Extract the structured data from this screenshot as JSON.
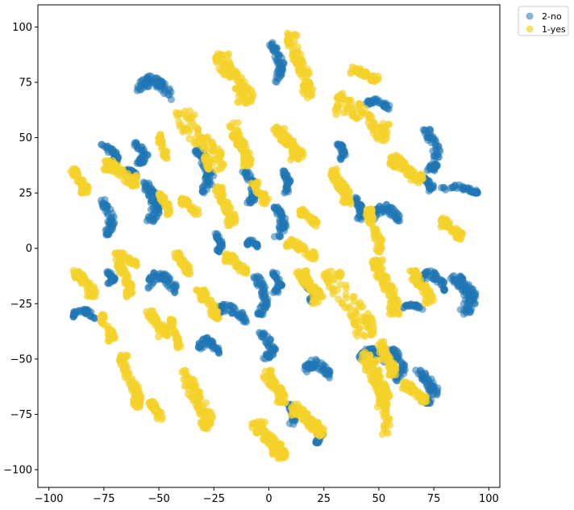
{
  "chart_data": {
    "type": "scatter",
    "title": "",
    "xlabel": "",
    "ylabel": "",
    "xlim": [
      -105,
      105
    ],
    "ylim": [
      -108,
      110
    ],
    "xticks": [
      -100,
      -75,
      -50,
      -25,
      0,
      25,
      50,
      75,
      100
    ],
    "yticks": [
      -100,
      -75,
      -50,
      -25,
      0,
      25,
      50,
      75,
      100
    ],
    "grid": false,
    "legend_position": "outside-top-right",
    "series": [
      {
        "name": "2-no",
        "color": "#1f77b4",
        "alpha": 0.55,
        "clusters": [
          {
            "x": [
              -1,
              7
            ],
            "y": [
              75,
              93
            ]
          },
          {
            "x": [
              -60,
              -44
            ],
            "y": [
              66,
              78
            ]
          },
          {
            "x": [
              -77,
              -68
            ],
            "y": [
              36,
              47
            ]
          },
          {
            "x": [
              -63,
              -55
            ],
            "y": [
              38,
              48
            ]
          },
          {
            "x": [
              -67,
              -60
            ],
            "y": [
              32,
              36
            ]
          },
          {
            "x": [
              -78,
              -70
            ],
            "y": [
              6,
              22
            ]
          },
          {
            "x": [
              -60,
              -49
            ],
            "y": [
              12,
              30
            ]
          },
          {
            "x": [
              -89,
              -78
            ],
            "y": [
              -33,
              -27
            ]
          },
          {
            "x": [
              -75,
              -70
            ],
            "y": [
              -16,
              -10
            ]
          },
          {
            "x": [
              -55,
              -42
            ],
            "y": [
              -22,
              -10
            ]
          },
          {
            "x": [
              -32,
              -22
            ],
            "y": [
              -50,
              -40
            ]
          },
          {
            "x": [
              -26,
              -21
            ],
            "y": [
              -2,
              7
            ]
          },
          {
            "x": [
              -10,
              -5
            ],
            "y": [
              0,
              4
            ]
          },
          {
            "x": [
              -8,
              0
            ],
            "y": [
              -30,
              -12
            ]
          },
          {
            "x": [
              -6,
              3
            ],
            "y": [
              -50,
              -38
            ]
          },
          {
            "x": [
              0,
              8
            ],
            "y": [
              5,
              20
            ]
          },
          {
            "x": [
              0,
              6
            ],
            "y": [
              -20,
              -10
            ]
          },
          {
            "x": [
              15,
              22
            ],
            "y": [
              -16,
              -24
            ]
          },
          {
            "x": [
              16,
              28
            ],
            "y": [
              -60,
              -50
            ]
          },
          {
            "x": [
              18,
              25
            ],
            "y": [
              -88,
              -80
            ]
          },
          {
            "x": [
              7,
              13
            ],
            "y": [
              -80,
              -70
            ]
          },
          {
            "x": [
              30,
              35
            ],
            "y": [
              40,
              48
            ]
          },
          {
            "x": [
              38,
              43
            ],
            "y": [
              12,
              23
            ]
          },
          {
            "x": [
              44,
              55
            ],
            "y": [
              62,
              68
            ]
          },
          {
            "x": [
              41,
              53
            ],
            "y": [
              -53,
              -45
            ]
          },
          {
            "x": [
              48,
              60
            ],
            "y": [
              10,
              20
            ]
          },
          {
            "x": [
              69,
              78
            ],
            "y": [
              35,
              54
            ]
          },
          {
            "x": [
              69,
              75
            ],
            "y": [
              25,
              32
            ]
          },
          {
            "x": [
              78,
              95
            ],
            "y": [
              24,
              29
            ]
          },
          {
            "x": [
              80,
              95
            ],
            "y": [
              -12,
              -30
            ]
          },
          {
            "x": [
              69,
              80
            ],
            "y": [
              -10,
              -20
            ]
          },
          {
            "x": [
              61,
              70
            ],
            "y": [
              -25,
              -28
            ]
          },
          {
            "x": [
              65,
              77
            ],
            "y": [
              -55,
              -70
            ]
          },
          {
            "x": [
              54,
              62
            ],
            "y": [
              -45,
              -60
            ]
          },
          {
            "x": [
              -25,
              -10
            ],
            "y": [
              -35,
              -25
            ]
          },
          {
            "x": [
              -35,
              -25
            ],
            "y": [
              25,
              45
            ]
          },
          {
            "x": [
              -13,
              -5
            ],
            "y": [
              20,
              35
            ]
          },
          {
            "x": [
              5,
              10
            ],
            "y": [
              25,
              35
            ]
          }
        ]
      },
      {
        "name": "1-yes",
        "color": "#f5d22a",
        "alpha": 0.7,
        "clusters": [
          {
            "x": [
              -25,
              -7
            ],
            "y": [
              65,
              88
            ]
          },
          {
            "x": [
              8,
              20
            ],
            "y": [
              68,
              98
            ]
          },
          {
            "x": [
              -90,
              -82
            ],
            "y": [
              25,
              36
            ]
          },
          {
            "x": [
              -51,
              -46
            ],
            "y": [
              40,
              52
            ]
          },
          {
            "x": [
              -43,
              -20
            ],
            "y": [
              35,
              62
            ]
          },
          {
            "x": [
              -18,
              -8
            ],
            "y": [
              37,
              57
            ]
          },
          {
            "x": [
              2,
              16
            ],
            "y": [
              40,
              55
            ]
          },
          {
            "x": [
              27,
              38
            ],
            "y": [
              20,
              36
            ]
          },
          {
            "x": [
              30,
              55
            ],
            "y": [
              48,
              70
            ]
          },
          {
            "x": [
              37,
              50
            ],
            "y": [
              75,
              82
            ]
          },
          {
            "x": [
              -89,
              -78
            ],
            "y": [
              -10,
              -22
            ]
          },
          {
            "x": [
              -70,
              -62
            ],
            "y": [
              -2,
              -22
            ]
          },
          {
            "x": [
              -43,
              -35
            ],
            "y": [
              -2,
              -12
            ]
          },
          {
            "x": [
              -33,
              -22
            ],
            "y": [
              -18,
              -32
            ]
          },
          {
            "x": [
              -77,
              -70
            ],
            "y": [
              -30,
              -42
            ]
          },
          {
            "x": [
              -56,
              -46
            ],
            "y": [
              -28,
              -40
            ]
          },
          {
            "x": [
              -45,
              -40
            ],
            "y": [
              -32,
              -45
            ]
          },
          {
            "x": [
              -20,
              -10
            ],
            "y": [
              -12,
              -2
            ]
          },
          {
            "x": [
              8,
              22
            ],
            "y": [
              -5,
              4
            ]
          },
          {
            "x": [
              12,
              25
            ],
            "y": [
              -25,
              -10
            ]
          },
          {
            "x": [
              25,
              48
            ],
            "y": [
              -40,
              -10
            ]
          },
          {
            "x": [
              47,
              60
            ],
            "y": [
              -5,
              -30
            ]
          },
          {
            "x": [
              -68,
              -58
            ],
            "y": [
              -48,
              -72
            ]
          },
          {
            "x": [
              -55,
              -48
            ],
            "y": [
              -68,
              -78
            ]
          },
          {
            "x": [
              -40,
              -25
            ],
            "y": [
              -55,
              -82
            ]
          },
          {
            "x": [
              -8,
              8
            ],
            "y": [
              -78,
              -95
            ]
          },
          {
            "x": [
              10,
              25
            ],
            "y": [
              -70,
              -85
            ]
          },
          {
            "x": [
              -3,
              8
            ],
            "y": [
              -55,
              -70
            ]
          },
          {
            "x": [
              42,
              55
            ],
            "y": [
              -47,
              -72
            ]
          },
          {
            "x": [
              60,
              72
            ],
            "y": [
              -60,
              -70
            ]
          },
          {
            "x": [
              47,
              55
            ],
            "y": [
              -85,
              -50
            ]
          },
          {
            "x": [
              44,
              52
            ],
            "y": [
              -2,
              18
            ]
          },
          {
            "x": [
              49,
              58
            ],
            "y": [
              -42,
              -58
            ]
          },
          {
            "x": [
              78,
              88
            ],
            "y": [
              4,
              14
            ]
          },
          {
            "x": [
              55,
              70
            ],
            "y": [
              28,
              42
            ]
          },
          {
            "x": [
              64,
              75
            ],
            "y": [
              -10,
              -25
            ]
          },
          {
            "x": [
              14,
              22
            ],
            "y": [
              10,
              18
            ]
          },
          {
            "x": [
              -75,
              -60
            ],
            "y": [
              28,
              40
            ]
          },
          {
            "x": [
              -68,
              -60
            ],
            "y": [
              -2,
              -8
            ]
          },
          {
            "x": [
              -50,
              -44
            ],
            "y": [
              15,
              25
            ]
          },
          {
            "x": [
              -40,
              -32
            ],
            "y": [
              15,
              23
            ]
          },
          {
            "x": [
              -25,
              -15
            ],
            "y": [
              10,
              28
            ]
          },
          {
            "x": [
              -8,
              0
            ],
            "y": [
              20,
              30
            ]
          }
        ]
      }
    ]
  }
}
